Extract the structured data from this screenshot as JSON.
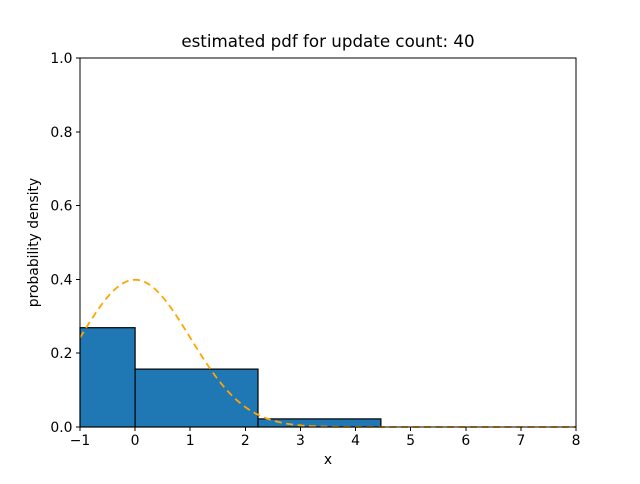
{
  "chart_data": {
    "type": "histogram",
    "title": "estimated pdf for update count: 40",
    "xlabel": "x",
    "ylabel": "probability density",
    "xlim": [
      -1,
      8
    ],
    "ylim": [
      0.0,
      1.0
    ],
    "grid": false,
    "x_ticks": {
      "values": [
        -1,
        0,
        1,
        2,
        3,
        4,
        5,
        6,
        7,
        8
      ],
      "labels": [
        "−1",
        "0",
        "1",
        "2",
        "3",
        "4",
        "5",
        "6",
        "7",
        "8"
      ]
    },
    "y_ticks": {
      "values": [
        0.0,
        0.2,
        0.4,
        0.6,
        0.8,
        1.0
      ],
      "labels": [
        "0.0",
        "0.2",
        "0.4",
        "0.6",
        "0.8",
        "1.0"
      ]
    },
    "histogram": {
      "bin_edges": [
        -2.23,
        0.0,
        2.23,
        4.46
      ],
      "densities": [
        0.269,
        0.157,
        0.022
      ],
      "fill_color": "#1f77b4",
      "edge_color": "#000000"
    },
    "curve": {
      "name": "gaussian-pdf-overlay",
      "shape": "gaussian",
      "mean": 0.0,
      "sigma": 1.0,
      "peak_density": 0.399,
      "x_range": [
        -1,
        8
      ],
      "color": "#ffa500",
      "linestyle": "dashed"
    }
  }
}
